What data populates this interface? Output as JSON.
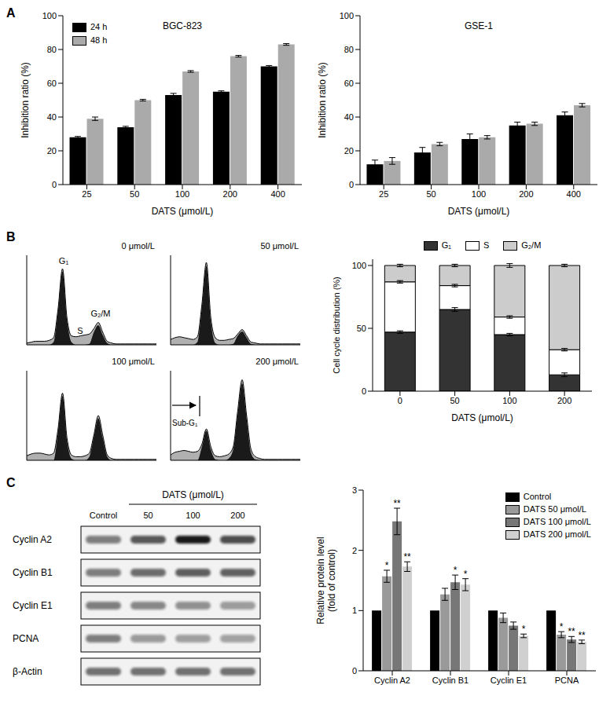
{
  "panels": [
    "A",
    "B",
    "C"
  ],
  "chart_data": [
    {
      "type": "bar",
      "title": "BGC-823",
      "categories": [
        "25",
        "50",
        "100",
        "200",
        "400"
      ],
      "xlabel": "DATS (μmol/L)",
      "ylabel": "Inhibition ratio (%)",
      "ylim": [
        0,
        100
      ],
      "yticks": [
        0,
        20,
        40,
        60,
        80,
        100
      ],
      "legend": "upper left",
      "series": [
        {
          "name": "24 h",
          "color": "#000000",
          "values": [
            28,
            34,
            53,
            55,
            70
          ],
          "errors": [
            0.5,
            0.5,
            1,
            0.5,
            0.5
          ]
        },
        {
          "name": "48 h",
          "color": "#aaaaaa",
          "values": [
            39,
            50,
            67,
            76,
            83
          ],
          "errors": [
            1,
            0.5,
            0.5,
            0.5,
            0.5
          ]
        }
      ]
    },
    {
      "type": "bar",
      "title": "GSE-1",
      "categories": [
        "25",
        "50",
        "100",
        "200",
        "400"
      ],
      "xlabel": "DATS (μmol/L)",
      "ylabel": "Inhibition ratio (%)",
      "ylim": [
        0,
        100
      ],
      "yticks": [
        0,
        20,
        40,
        60,
        80,
        100
      ],
      "series": [
        {
          "color": "#000000",
          "values": [
            12,
            19,
            27,
            35,
            41
          ],
          "errors": [
            2.5,
            3,
            3,
            2,
            2
          ]
        },
        {
          "color": "#aaaaaa",
          "values": [
            14,
            24,
            28,
            36,
            47
          ],
          "errors": [
            2,
            1,
            1,
            1,
            1
          ]
        }
      ]
    },
    {
      "type": "area",
      "title": "0 μmol/L",
      "annotations": [
        "G₁",
        "S",
        "G₂/M"
      ],
      "tick_labels": false,
      "x": [
        0,
        1,
        2,
        3,
        4,
        5,
        6,
        7,
        8,
        9,
        10,
        11,
        12,
        13,
        14,
        15,
        16,
        17,
        18,
        19,
        20,
        21,
        22,
        23,
        24,
        25,
        26,
        27,
        28,
        29
      ],
      "xlim": [
        0,
        29
      ],
      "ylim": [
        0,
        100
      ],
      "series": [
        {
          "color": "#b0b0b0",
          "values": [
            2,
            3,
            4,
            4,
            4,
            5,
            8,
            40,
            85,
            30,
            10,
            9,
            10,
            11,
            12,
            18,
            25,
            14,
            4,
            2,
            1,
            1,
            1,
            1,
            1,
            1,
            1,
            1,
            1,
            1
          ]
        },
        {
          "color": "#1a1a1a",
          "values": [
            0,
            0,
            0,
            0,
            0,
            0,
            3,
            38,
            82,
            28,
            3,
            0,
            0,
            0,
            1,
            14,
            22,
            11,
            2,
            0,
            0,
            0,
            0,
            0,
            0,
            0,
            0,
            0,
            0,
            0
          ]
        }
      ]
    },
    {
      "type": "area",
      "title": "50 μmol/L",
      "tick_labels": false,
      "x": [
        0,
        1,
        2,
        3,
        4,
        5,
        6,
        7,
        8,
        9,
        10,
        11,
        12,
        13,
        14,
        15,
        16,
        17,
        18,
        19,
        20,
        21,
        22,
        23,
        24,
        25,
        26,
        27,
        28,
        29
      ],
      "xlim": [
        0,
        29
      ],
      "ylim": [
        0,
        100
      ],
      "series": [
        {
          "color": "#b0b0b0",
          "values": [
            6,
            8,
            9,
            8,
            7,
            6,
            9,
            45,
            92,
            30,
            8,
            5,
            5,
            6,
            7,
            12,
            17,
            10,
            3,
            2,
            1,
            1,
            1,
            1,
            1,
            1,
            1,
            1,
            1,
            1
          ]
        },
        {
          "color": "#1a1a1a",
          "values": [
            0,
            0,
            0,
            0,
            0,
            0,
            3,
            42,
            88,
            26,
            2,
            0,
            0,
            0,
            1,
            10,
            15,
            8,
            1,
            0,
            0,
            0,
            0,
            0,
            0,
            0,
            0,
            0,
            0,
            0
          ]
        }
      ]
    },
    {
      "type": "area",
      "title": "100 μmol/L",
      "tick_labels": false,
      "x": [
        0,
        1,
        2,
        3,
        4,
        5,
        6,
        7,
        8,
        9,
        10,
        11,
        12,
        13,
        14,
        15,
        16,
        17,
        18,
        19,
        20,
        21,
        22,
        23,
        24,
        25,
        26,
        27,
        28,
        29
      ],
      "xlim": [
        0,
        29
      ],
      "ylim": [
        0,
        100
      ],
      "series": [
        {
          "color": "#b0b0b0",
          "values": [
            5,
            7,
            8,
            8,
            7,
            6,
            8,
            35,
            75,
            25,
            6,
            4,
            4,
            5,
            8,
            28,
            50,
            28,
            6,
            2,
            1,
            1,
            1,
            1,
            1,
            1,
            1,
            1,
            1,
            1
          ]
        },
        {
          "color": "#1a1a1a",
          "values": [
            0,
            0,
            0,
            0,
            0,
            0,
            0,
            32,
            72,
            22,
            2,
            0,
            0,
            0,
            4,
            26,
            47,
            25,
            4,
            0,
            0,
            0,
            0,
            0,
            0,
            0,
            0,
            0,
            0,
            0
          ]
        }
      ]
    },
    {
      "type": "area",
      "title": "200 μmol/L",
      "annotations": [
        "Sub-G₁"
      ],
      "tick_labels": false,
      "x": [
        0,
        1,
        2,
        3,
        4,
        5,
        6,
        7,
        8,
        9,
        10,
        11,
        12,
        13,
        14,
        15,
        16,
        17,
        18,
        19,
        20,
        21,
        22,
        23,
        24,
        25,
        26,
        27,
        28,
        29
      ],
      "xlim": [
        0,
        29
      ],
      "ylim": [
        0,
        100
      ],
      "series": [
        {
          "color": "#b0b0b0",
          "values": [
            6,
            9,
            10,
            11,
            10,
            9,
            10,
            18,
            35,
            15,
            5,
            4,
            5,
            7,
            15,
            55,
            90,
            50,
            12,
            4,
            2,
            1,
            1,
            1,
            1,
            1,
            1,
            1,
            1,
            1
          ]
        },
        {
          "color": "#1a1a1a",
          "values": [
            0,
            0,
            0,
            0,
            0,
            0,
            0,
            15,
            33,
            12,
            1,
            0,
            0,
            2,
            12,
            52,
            86,
            46,
            8,
            1,
            0,
            0,
            0,
            0,
            0,
            0,
            0,
            0,
            0,
            0
          ]
        }
      ]
    },
    {
      "type": "bar",
      "stacked": true,
      "categories": [
        "0",
        "50",
        "100",
        "200"
      ],
      "xlabel": "DATS (μmol/L)",
      "ylabel": "Cell cycle distribution (%)",
      "ylim": [
        0,
        105
      ],
      "yticks": [
        0,
        50,
        100
      ],
      "legend": "top",
      "series": [
        {
          "name": "G₁",
          "color": "#333333",
          "values": [
            47,
            65,
            45,
            13
          ],
          "errors": [
            1,
            1.5,
            1,
            1.5
          ]
        },
        {
          "name": "S",
          "color": "#ffffff",
          "values": [
            40,
            19,
            14,
            20
          ],
          "errors": [
            1,
            1,
            1,
            1
          ]
        },
        {
          "name": "G₂/M",
          "color": "#cccccc",
          "values": [
            13,
            16,
            41,
            67
          ],
          "errors": [
            1,
            1,
            1.5,
            1
          ]
        }
      ]
    },
    {
      "type": "bar",
      "categories": [
        "Cyclin A2",
        "Cyclin B1",
        "Cyclin E1",
        "PCNA"
      ],
      "ylabel": [
        "Relative protein level",
        "(fold of control)"
      ],
      "ylim": [
        0,
        3
      ],
      "yticks": [
        0,
        1,
        2,
        3
      ],
      "legend": "upper right",
      "series": [
        {
          "name": "Control",
          "color": "#000000",
          "values": [
            1,
            1,
            1,
            1
          ]
        },
        {
          "name": "DATS 50 μmol/L",
          "color": "#9a9a9a",
          "values": [
            1.57,
            1.27,
            0.88,
            0.6
          ],
          "errors": [
            0.1,
            0.1,
            0.08,
            0.05
          ],
          "significance": [
            "*",
            null,
            null,
            "*"
          ]
        },
        {
          "name": "DATS 100 μmol/L",
          "color": "#777777",
          "values": [
            2.48,
            1.47,
            0.75,
            0.52
          ],
          "errors": [
            0.22,
            0.12,
            0.06,
            0.05
          ],
          "significance": [
            "**",
            "*",
            null,
            "**"
          ]
        },
        {
          "name": "DATS 200 μmol/L",
          "color": "#d0d0d0",
          "values": [
            1.73,
            1.43,
            0.58,
            0.48
          ],
          "errors": [
            0.08,
            0.1,
            0.03,
            0.03
          ],
          "significance": [
            "**",
            "*",
            "*",
            "**"
          ]
        }
      ]
    }
  ],
  "blot": {
    "header": "DATS (μmol/L)",
    "lanes": [
      "Control",
      "50",
      "100",
      "200"
    ],
    "rows": [
      "Cyclin A2",
      "Cyclin B1",
      "Cyclin E1",
      "PCNA",
      "β-Actin"
    ]
  }
}
